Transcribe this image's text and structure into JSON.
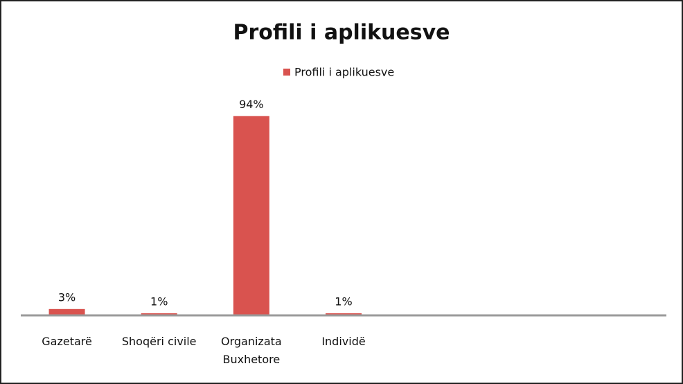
{
  "chart_data": {
    "type": "bar",
    "title": "Profili i aplikuesve",
    "categories": [
      "Gazetarë",
      "Shoqëri civile",
      "Organizata Buxhetore",
      "Individë",
      null,
      null,
      null
    ],
    "series": [
      {
        "name": "Profili i aplikuesve",
        "color": "#d9534f",
        "values": [
          3,
          1,
          94,
          1,
          null,
          null,
          null
        ],
        "value_labels": [
          "3%",
          "1%",
          "94%",
          "1%",
          null,
          null,
          null
        ]
      }
    ],
    "ylim": [
      0,
      100
    ],
    "grid": false,
    "legend": "top"
  }
}
